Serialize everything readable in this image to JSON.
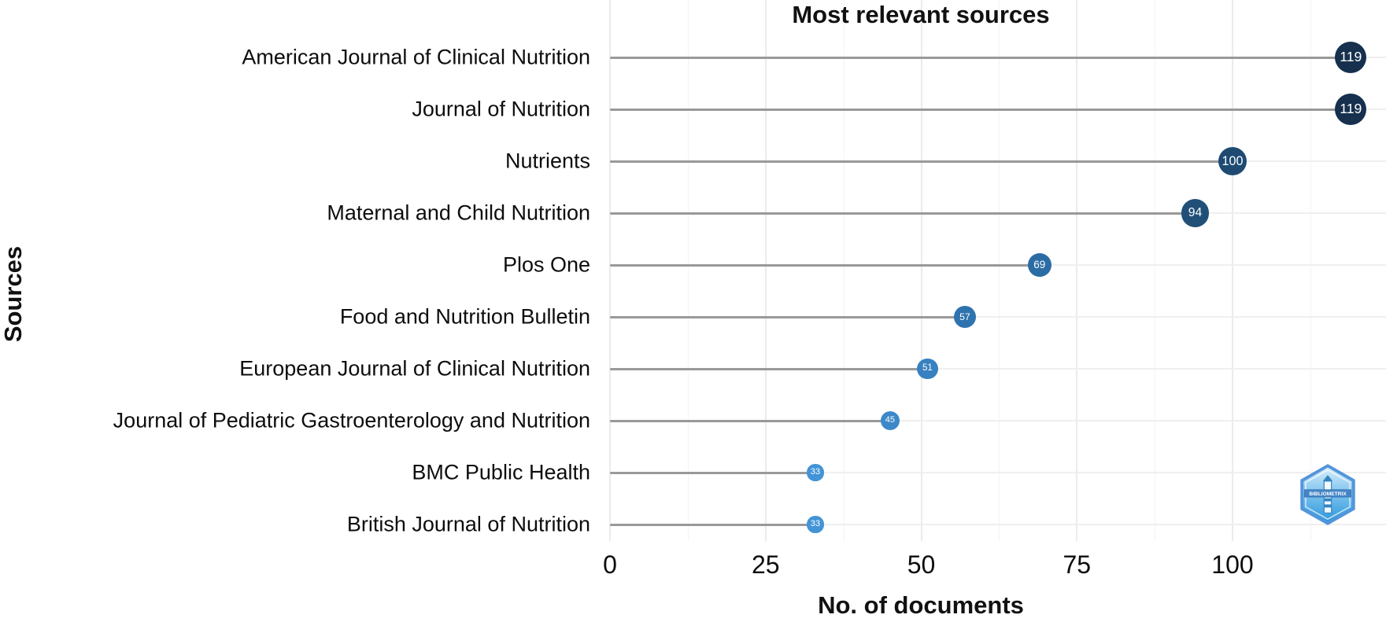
{
  "title": "Most relevant sources",
  "axes": {
    "x_title": "No. of documents",
    "y_title": "Sources"
  },
  "watermark": {
    "label": "BIBLIOMETRIX"
  },
  "chart_data": {
    "type": "scatter",
    "subtype": "lollipop-dot-horizontal",
    "title": "Most relevant sources",
    "xlabel": "No. of documents",
    "ylabel": "Sources",
    "categories": [
      "American Journal of Clinical Nutrition",
      "Journal of Nutrition",
      "Nutrients",
      "Maternal and Child Nutrition",
      "Plos One",
      "Food and Nutrition Bulletin",
      "European Journal of Clinical Nutrition",
      "Journal of Pediatric Gastroenterology and Nutrition",
      "BMC Public Health",
      "British Journal of Nutrition"
    ],
    "values": [
      119,
      119,
      100,
      94,
      69,
      57,
      51,
      45,
      33,
      33
    ],
    "point_colors": [
      "#16304e",
      "#16304e",
      "#1e4a72",
      "#205078",
      "#2c6ca4",
      "#2f73ae",
      "#3781c0",
      "#3c88c9",
      "#4394d6",
      "#4394d6"
    ],
    "data_label_color": "#ffffff",
    "stem_color": "#999999",
    "x_ticks": [
      0,
      25,
      50,
      75,
      100
    ],
    "xlim": [
      0,
      124
    ],
    "grid": true,
    "legend_position": "none",
    "background": "#ffffff"
  }
}
